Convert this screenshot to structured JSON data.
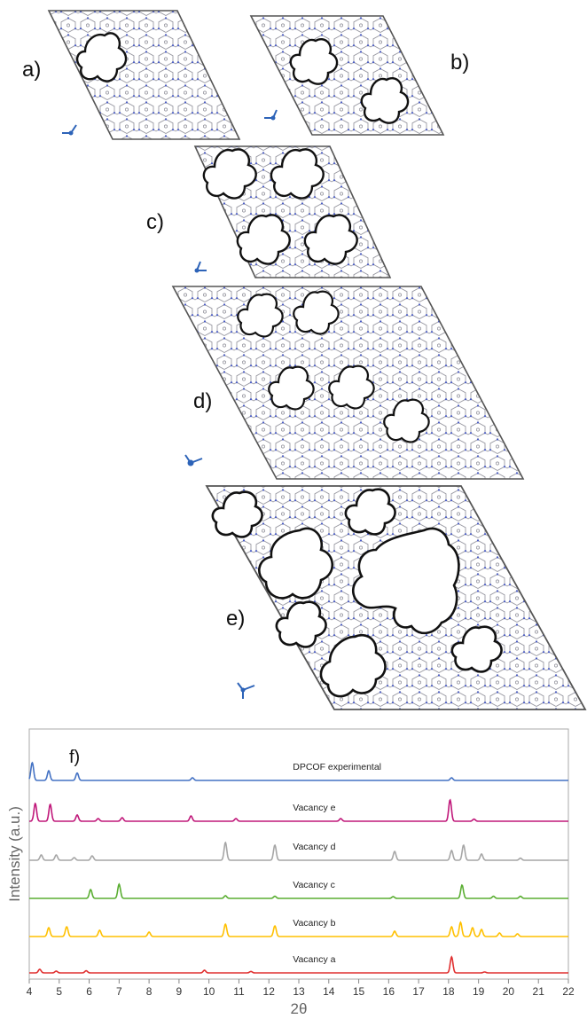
{
  "panels": {
    "a": {
      "label": "a)"
    },
    "b": {
      "label": "b)"
    },
    "c": {
      "label": "c)"
    },
    "d": {
      "label": "d)"
    },
    "e": {
      "label": "e)"
    }
  },
  "chart_data": {
    "type": "line",
    "panel_label": "f)",
    "xlabel": "2θ",
    "ylabel": "Intensity (a.u.)",
    "xlim": [
      4,
      22
    ],
    "xticks": [
      "4",
      "5",
      "6",
      "7",
      "8",
      "9",
      "10",
      "11",
      "12",
      "13",
      "14",
      "15",
      "16",
      "17",
      "18",
      "19",
      "20",
      "21",
      "22"
    ],
    "grid": false,
    "series": [
      {
        "name": "DPCOF experimental",
        "color": "#4472c4",
        "peaks": [
          [
            4.1,
            1.0
          ],
          [
            4.65,
            0.55
          ],
          [
            5.6,
            0.42
          ],
          [
            9.45,
            0.15
          ],
          [
            18.1,
            0.15
          ]
        ]
      },
      {
        "name": "Vacancy e",
        "color": "#c0187a",
        "peaks": [
          [
            4.2,
            1.0
          ],
          [
            4.7,
            0.95
          ],
          [
            5.6,
            0.35
          ],
          [
            6.3,
            0.15
          ],
          [
            7.1,
            0.2
          ],
          [
            9.4,
            0.3
          ],
          [
            10.9,
            0.15
          ],
          [
            14.4,
            0.15
          ],
          [
            18.05,
            1.2
          ],
          [
            18.85,
            0.12
          ]
        ]
      },
      {
        "name": "Vacancy d",
        "color": "#a6a6a6",
        "peaks": [
          [
            4.4,
            0.3
          ],
          [
            4.9,
            0.3
          ],
          [
            5.5,
            0.15
          ],
          [
            6.1,
            0.25
          ],
          [
            10.55,
            1.0
          ],
          [
            12.2,
            0.85
          ],
          [
            16.2,
            0.5
          ],
          [
            18.1,
            0.55
          ],
          [
            18.5,
            0.85
          ],
          [
            19.1,
            0.35
          ],
          [
            20.4,
            0.12
          ]
        ]
      },
      {
        "name": "Vacancy c",
        "color": "#5aae32",
        "peaks": [
          [
            6.05,
            0.5
          ],
          [
            7.0,
            0.8
          ],
          [
            10.55,
            0.15
          ],
          [
            12.2,
            0.12
          ],
          [
            16.15,
            0.1
          ],
          [
            18.45,
            0.75
          ],
          [
            19.5,
            0.12
          ],
          [
            20.4,
            0.12
          ]
        ]
      },
      {
        "name": "Vacancy b",
        "color": "#ffc000",
        "peaks": [
          [
            4.65,
            0.5
          ],
          [
            5.25,
            0.55
          ],
          [
            6.35,
            0.35
          ],
          [
            8.0,
            0.25
          ],
          [
            10.55,
            0.7
          ],
          [
            12.2,
            0.6
          ],
          [
            16.2,
            0.3
          ],
          [
            18.1,
            0.55
          ],
          [
            18.4,
            0.8
          ],
          [
            18.8,
            0.5
          ],
          [
            19.1,
            0.4
          ],
          [
            19.7,
            0.2
          ],
          [
            20.3,
            0.15
          ]
        ]
      },
      {
        "name": "Vacancy a",
        "color": "#e03030",
        "peaks": [
          [
            4.35,
            0.2
          ],
          [
            4.9,
            0.1
          ],
          [
            5.9,
            0.12
          ],
          [
            9.85,
            0.15
          ],
          [
            11.4,
            0.08
          ],
          [
            18.1,
            0.9
          ],
          [
            19.2,
            0.05
          ]
        ]
      }
    ]
  }
}
